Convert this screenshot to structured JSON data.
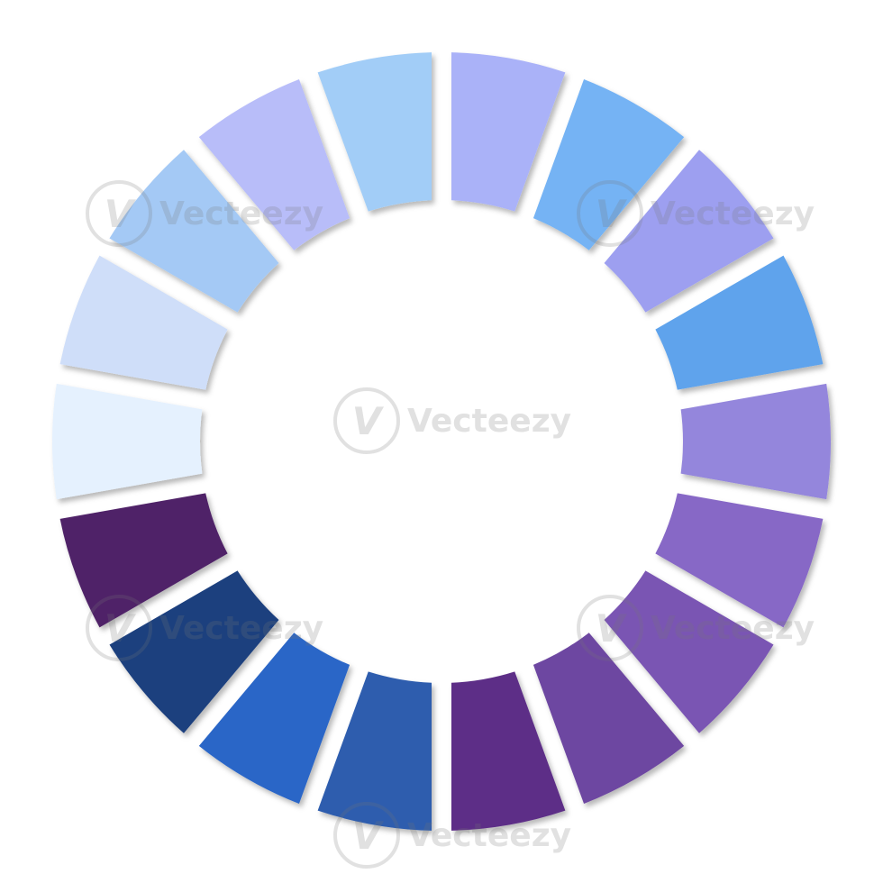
{
  "wheel": {
    "segment_count": 18,
    "segments": [
      {
        "color": "#aab2f8"
      },
      {
        "color": "#75b3f4"
      },
      {
        "color": "#9d9ff0"
      },
      {
        "color": "#5ea3ec"
      },
      {
        "color": "#9486dc"
      },
      {
        "color": "#8767c6"
      },
      {
        "color": "#7a55b3"
      },
      {
        "color": "#6d46a1"
      },
      {
        "color": "#5d2f87"
      },
      {
        "color": "#2e5dae"
      },
      {
        "color": "#2b66c7"
      },
      {
        "color": "#1e3f7e"
      },
      {
        "color": "#4f2467"
      },
      {
        "color": "#e5f1fe"
      },
      {
        "color": "#cfdef9"
      },
      {
        "color": "#a4c9f5"
      }
    ],
    "extra_segments": [
      {
        "color": "#b8bdf9"
      },
      {
        "color": "#a2cdf7"
      }
    ]
  },
  "watermark": {
    "text": "Vecteezy",
    "mark": "V"
  }
}
